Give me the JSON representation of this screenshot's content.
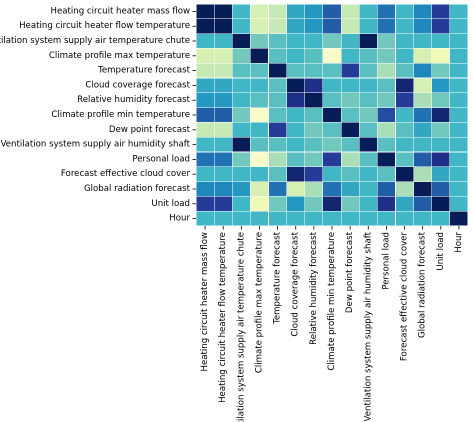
{
  "chart_data": {
    "type": "heatmap",
    "title": "",
    "xlabel": "",
    "ylabel": "",
    "colormap": "YlGnBu",
    "colorbar": false,
    "row_labels": [
      "Heating circuit heater mass flow",
      "Heating circuit heater flow temperature",
      "Ventilation system supply air temperature chute",
      "Climate profile max temperature",
      "Temperature forecast",
      "Cloud coverage forecast",
      "Relative humidity forecast",
      "Climate profile min temperature",
      "Dew point forecast",
      "Ventilation system supply air humidity shaft",
      "Personal load",
      "Forecast effective cloud cover",
      "Global radiation forecast",
      "Unit load",
      "Hour"
    ],
    "col_labels": [
      "Heating circuit heater mass flow",
      "Heating circuit heater flow temperature",
      "Ventilation system supply air temperature chute",
      "Climate profile max temperature",
      "Temperature forecast",
      "Cloud coverage forecast",
      "Relative humidity forecast",
      "Climate profile min temperature",
      "Dew point forecast",
      "Ventilation system supply air humidity shaft",
      "Personal load",
      "Forecast effective cloud cover",
      "Global radiation forecast",
      "Unit load",
      "Hour"
    ],
    "values": [
      [
        1.0,
        1.0,
        0.5,
        0.2,
        0.25,
        0.55,
        0.6,
        0.75,
        0.25,
        0.5,
        0.7,
        0.5,
        0.65,
        0.85,
        0.5
      ],
      [
        1.0,
        1.0,
        0.5,
        0.2,
        0.25,
        0.55,
        0.6,
        0.75,
        0.25,
        0.5,
        0.7,
        0.5,
        0.65,
        0.85,
        0.5
      ],
      [
        0.5,
        0.5,
        1.0,
        0.4,
        0.45,
        0.5,
        0.5,
        0.4,
        0.5,
        1.0,
        0.4,
        0.5,
        0.5,
        0.5,
        0.5
      ],
      [
        0.2,
        0.2,
        0.4,
        1.0,
        0.45,
        0.5,
        0.45,
        0.05,
        0.5,
        0.45,
        0.4,
        0.5,
        0.2,
        0.1,
        0.5
      ],
      [
        0.25,
        0.25,
        0.45,
        0.45,
        1.0,
        0.45,
        0.45,
        0.45,
        0.85,
        0.45,
        0.3,
        0.45,
        0.65,
        0.4,
        0.5
      ],
      [
        0.55,
        0.55,
        0.5,
        0.5,
        0.45,
        1.0,
        0.9,
        0.5,
        0.5,
        0.5,
        0.45,
        0.95,
        0.2,
        0.6,
        0.5
      ],
      [
        0.6,
        0.6,
        0.5,
        0.45,
        0.45,
        0.9,
        1.0,
        0.45,
        0.4,
        0.45,
        0.4,
        0.85,
        0.3,
        0.4,
        0.5
      ],
      [
        0.75,
        0.75,
        0.4,
        0.05,
        0.45,
        0.5,
        0.45,
        1.0,
        0.45,
        0.4,
        0.8,
        0.5,
        0.7,
        0.95,
        0.5
      ],
      [
        0.25,
        0.25,
        0.5,
        0.5,
        0.85,
        0.5,
        0.4,
        0.45,
        1.0,
        0.45,
        0.3,
        0.45,
        0.55,
        0.4,
        0.5
      ],
      [
        0.5,
        0.5,
        1.0,
        0.45,
        0.45,
        0.5,
        0.45,
        0.4,
        0.45,
        1.0,
        0.45,
        0.5,
        0.5,
        0.5,
        0.5
      ],
      [
        0.7,
        0.7,
        0.4,
        0.05,
        0.3,
        0.45,
        0.4,
        0.85,
        0.3,
        0.45,
        1.0,
        0.45,
        0.75,
        0.9,
        0.5
      ],
      [
        0.5,
        0.5,
        0.5,
        0.5,
        0.45,
        0.95,
        0.85,
        0.5,
        0.45,
        0.5,
        0.45,
        1.0,
        0.3,
        0.55,
        0.5
      ],
      [
        0.65,
        0.65,
        0.6,
        0.2,
        0.7,
        0.2,
        0.3,
        0.7,
        0.55,
        0.5,
        0.75,
        0.3,
        1.0,
        0.75,
        0.5
      ],
      [
        0.85,
        0.85,
        0.5,
        0.1,
        0.4,
        0.6,
        0.4,
        0.95,
        0.4,
        0.5,
        0.9,
        0.55,
        0.75,
        1.0,
        0.5
      ],
      [
        0.5,
        0.5,
        0.5,
        0.5,
        0.5,
        0.5,
        0.5,
        0.5,
        0.5,
        0.5,
        0.5,
        0.5,
        0.5,
        0.5,
        1.0
      ]
    ],
    "value_range": [
      0,
      1
    ],
    "grid": false,
    "legend": "none"
  }
}
